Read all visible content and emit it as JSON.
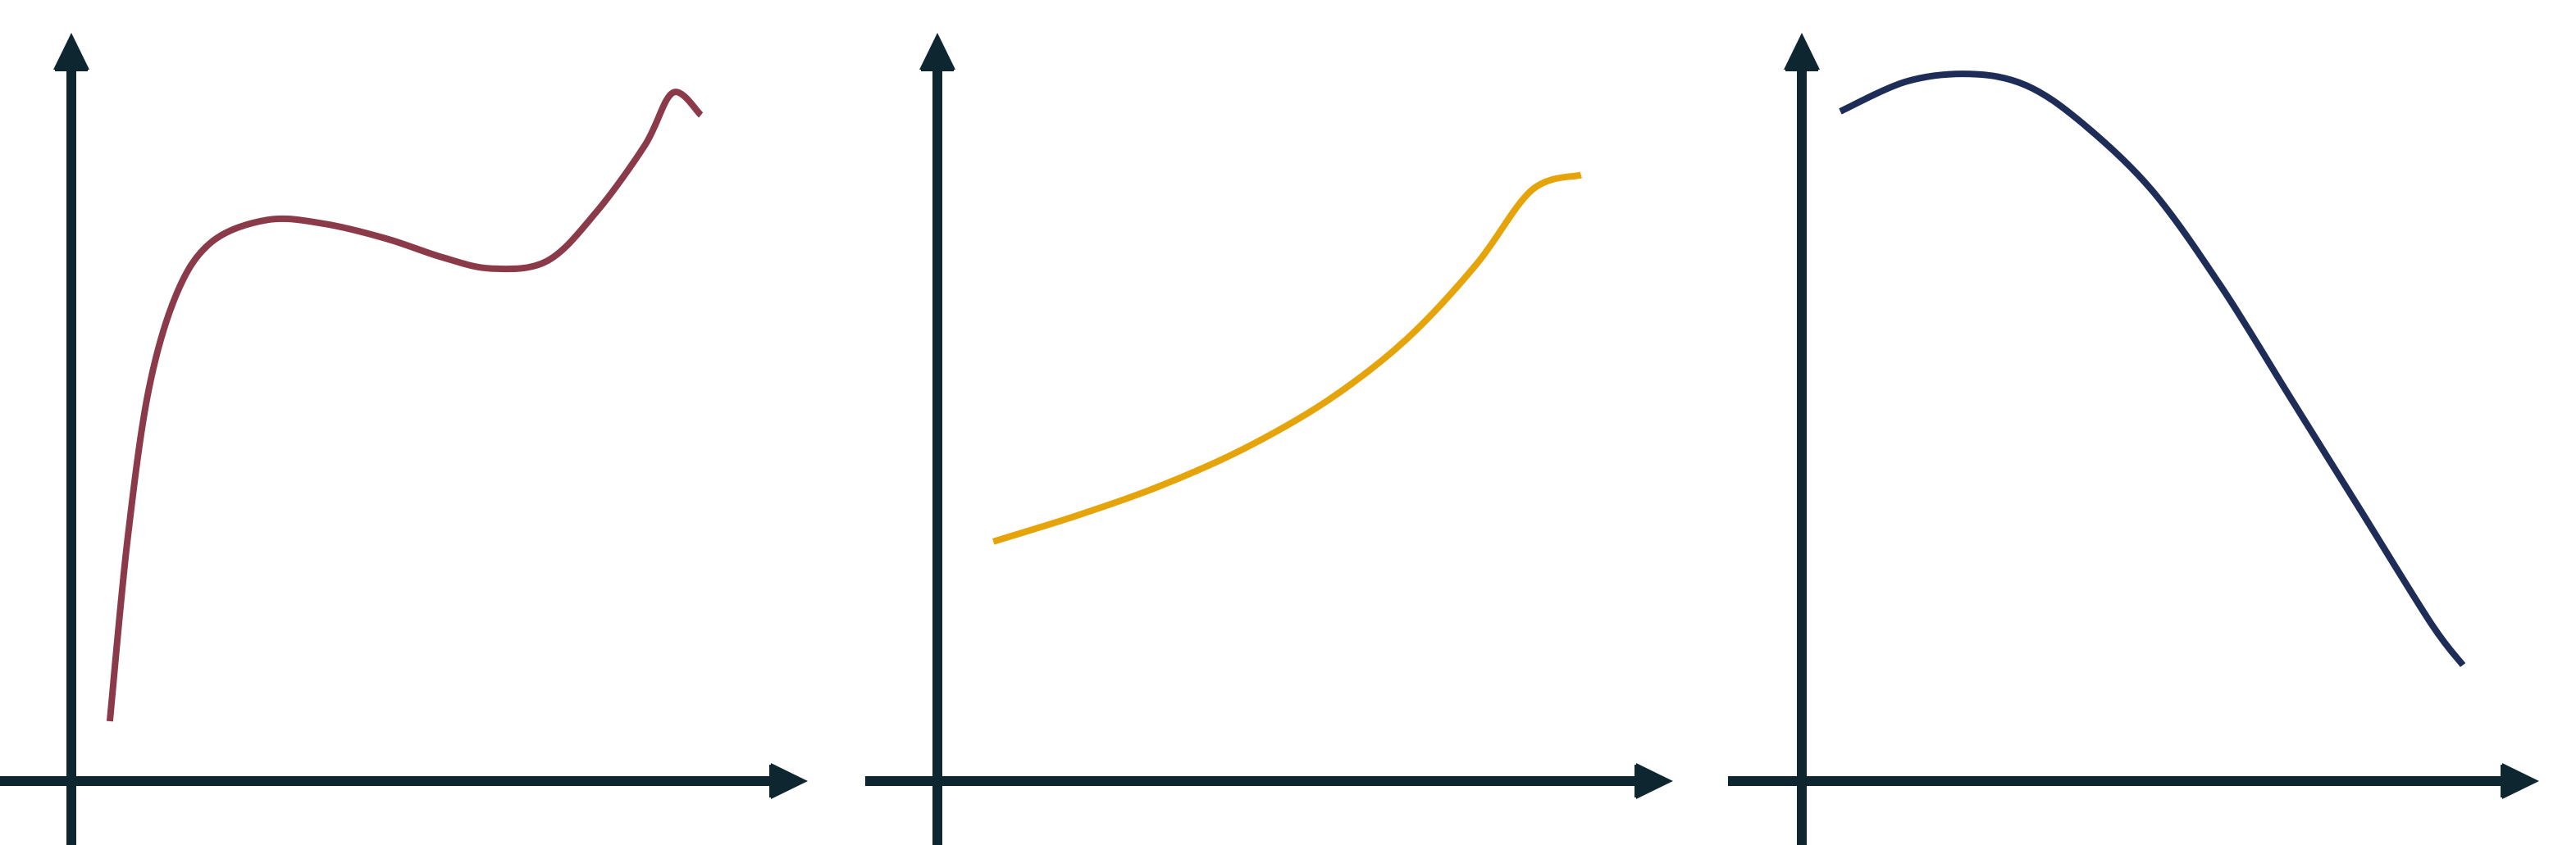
{
  "colors": {
    "axis": "#0d2630",
    "background": "#ffffff"
  },
  "chart_data": [
    {
      "type": "line",
      "title": "",
      "xlabel": "",
      "ylabel": "",
      "xlim": [
        0,
        10
      ],
      "ylim": [
        0,
        10
      ],
      "grid": false,
      "axis_style": "arrows",
      "series": [
        {
          "color": "#8b3a4a",
          "x": [
            0.55,
            0.8,
            1.1,
            1.5,
            2.0,
            2.8,
            3.6,
            4.5,
            5.3,
            6.0,
            6.8,
            7.5,
            8.2,
            8.6,
            9.0
          ],
          "y": [
            0.8,
            3.2,
            5.2,
            6.5,
            7.2,
            7.5,
            7.45,
            7.25,
            7.0,
            6.85,
            6.95,
            7.6,
            8.5,
            9.2,
            8.9
          ]
        }
      ]
    },
    {
      "type": "line",
      "title": "",
      "xlabel": "",
      "ylabel": "",
      "xlim": [
        0,
        10
      ],
      "ylim": [
        0,
        10
      ],
      "grid": false,
      "axis_style": "arrows",
      "series": [
        {
          "color": "#e5a50a",
          "x": [
            0.8,
            2.0,
            3.2,
            4.4,
            5.6,
            6.7,
            7.7,
            8.5,
            9.2
          ],
          "y": [
            3.2,
            3.55,
            3.95,
            4.45,
            5.1,
            5.9,
            6.9,
            7.9,
            8.1
          ]
        }
      ]
    },
    {
      "type": "line",
      "title": "",
      "xlabel": "",
      "ylabel": "",
      "xlim": [
        0,
        10
      ],
      "ylim": [
        0,
        10
      ],
      "grid": false,
      "axis_style": "arrows",
      "series": [
        {
          "color": "#1e2d57",
          "x": [
            0.55,
            1.5,
            2.4,
            3.2,
            4.0,
            5.0,
            6.0,
            7.0,
            8.0,
            9.0,
            9.45
          ],
          "y": [
            8.95,
            9.35,
            9.45,
            9.3,
            8.8,
            7.9,
            6.6,
            5.1,
            3.6,
            2.1,
            1.55
          ]
        }
      ]
    }
  ]
}
